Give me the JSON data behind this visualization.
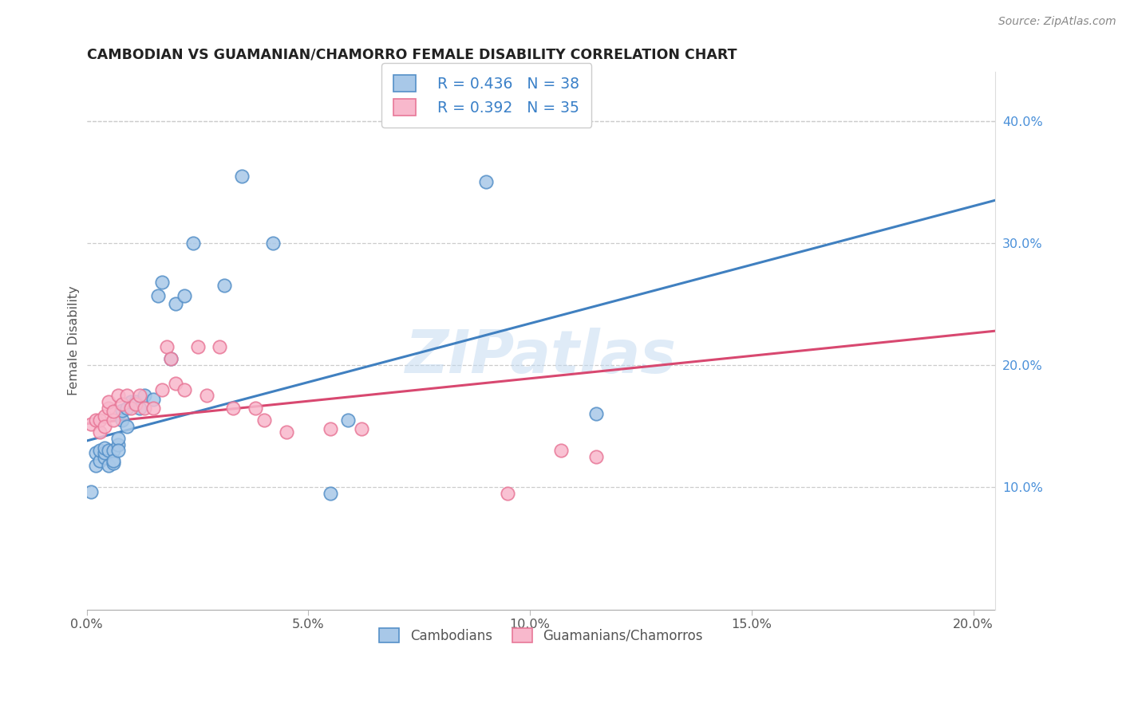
{
  "title": "CAMBODIAN VS GUAMANIAN/CHAMORRO FEMALE DISABILITY CORRELATION CHART",
  "source": "Source: ZipAtlas.com",
  "ylabel": "Female Disability",
  "xlim": [
    0.0,
    0.205
  ],
  "ylim": [
    0.0,
    0.44
  ],
  "xticks": [
    0.0,
    0.05,
    0.1,
    0.15,
    0.2
  ],
  "xtick_labels": [
    "0.0%",
    "5.0%",
    "10.0%",
    "15.0%",
    "20.0%"
  ],
  "yticks_right": [
    0.1,
    0.2,
    0.3,
    0.4
  ],
  "ytick_labels_right": [
    "10.0%",
    "20.0%",
    "30.0%",
    "40.0%"
  ],
  "blue_face": "#a8c8e8",
  "blue_edge": "#5590c8",
  "pink_face": "#f8b8cc",
  "pink_edge": "#e87898",
  "blue_line": "#4080c0",
  "pink_line": "#d84870",
  "legend_R_blue": "R = 0.436",
  "legend_N_blue": "N = 38",
  "legend_R_pink": "R = 0.392",
  "legend_N_pink": "N = 35",
  "label_blue": "Cambodians",
  "label_pink": "Guamanians/Chamorros",
  "watermark": "ZIPatlas",
  "blue_line_x0": 0.0,
  "blue_line_y0": 0.138,
  "blue_line_x1": 0.205,
  "blue_line_y1": 0.335,
  "pink_line_x0": 0.0,
  "pink_line_y0": 0.152,
  "pink_line_x1": 0.205,
  "pink_line_y1": 0.228,
  "cam_x": [
    0.001,
    0.002,
    0.002,
    0.003,
    0.003,
    0.004,
    0.004,
    0.004,
    0.005,
    0.005,
    0.006,
    0.006,
    0.006,
    0.007,
    0.007,
    0.007,
    0.008,
    0.008,
    0.009,
    0.009,
    0.01,
    0.011,
    0.012,
    0.013,
    0.015,
    0.016,
    0.017,
    0.019,
    0.02,
    0.022,
    0.024,
    0.031,
    0.035,
    0.042,
    0.055,
    0.059,
    0.09,
    0.115
  ],
  "cam_y": [
    0.096,
    0.118,
    0.128,
    0.122,
    0.13,
    0.124,
    0.128,
    0.132,
    0.118,
    0.13,
    0.12,
    0.13,
    0.122,
    0.135,
    0.14,
    0.13,
    0.155,
    0.163,
    0.15,
    0.165,
    0.17,
    0.17,
    0.165,
    0.175,
    0.172,
    0.257,
    0.268,
    0.205,
    0.25,
    0.257,
    0.3,
    0.265,
    0.355,
    0.3,
    0.095,
    0.155,
    0.35,
    0.16
  ],
  "guam_x": [
    0.001,
    0.002,
    0.003,
    0.003,
    0.004,
    0.004,
    0.005,
    0.005,
    0.006,
    0.006,
    0.007,
    0.008,
    0.009,
    0.01,
    0.011,
    0.012,
    0.013,
    0.015,
    0.017,
    0.018,
    0.019,
    0.02,
    0.022,
    0.025,
    0.027,
    0.03,
    0.033,
    0.038,
    0.04,
    0.045,
    0.055,
    0.062,
    0.095,
    0.107,
    0.115
  ],
  "guam_y": [
    0.152,
    0.155,
    0.145,
    0.155,
    0.158,
    0.15,
    0.165,
    0.17,
    0.155,
    0.162,
    0.175,
    0.168,
    0.175,
    0.165,
    0.168,
    0.175,
    0.165,
    0.165,
    0.18,
    0.215,
    0.205,
    0.185,
    0.18,
    0.215,
    0.175,
    0.215,
    0.165,
    0.165,
    0.155,
    0.145,
    0.148,
    0.148,
    0.095,
    0.13,
    0.125
  ]
}
